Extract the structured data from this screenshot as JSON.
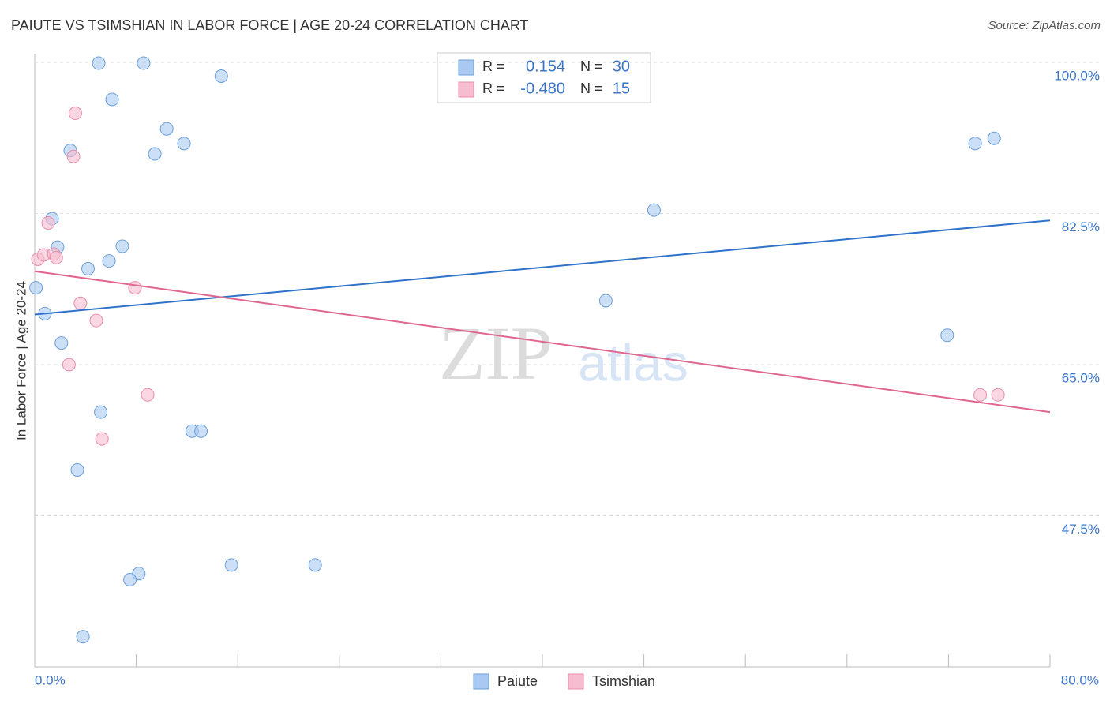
{
  "chart_data": {
    "type": "scatter",
    "title": "PAIUTE VS TSIMSHIAN IN LABOR FORCE | AGE 20-24 CORRELATION CHART",
    "source": "Source: ZipAtlas.com",
    "y_label": "In Labor Force | Age 20-24",
    "watermark": [
      "ZIP",
      "atlas"
    ],
    "xlim": [
      0,
      80
    ],
    "ylim": [
      30,
      101
    ],
    "xticks": [
      {
        "value": 0,
        "label": "0.0%"
      },
      {
        "value": 8,
        "label": null
      },
      {
        "value": 16,
        "label": null
      },
      {
        "value": 24,
        "label": null
      },
      {
        "value": 32,
        "label": null
      },
      {
        "value": 40,
        "label": null
      },
      {
        "value": 48,
        "label": null
      },
      {
        "value": 56,
        "label": null
      },
      {
        "value": 64,
        "label": null
      },
      {
        "value": 72,
        "label": null
      },
      {
        "value": 80,
        "label": "80.0%"
      }
    ],
    "yticks": [
      {
        "value": 100,
        "label": "100.0%"
      },
      {
        "value": 82.5,
        "label": "82.5%"
      },
      {
        "value": 65,
        "label": "65.0%"
      },
      {
        "value": 47.5,
        "label": "47.5%"
      }
    ],
    "grid": true,
    "stat_labels": [
      "R =",
      "N ="
    ],
    "series": [
      {
        "name": "Paiute",
        "color": "#a9c9f2",
        "stroke": "#6d9fdb",
        "line_color": "#2f72c9",
        "r": "0.154",
        "n": "30",
        "x": [
          5.04,
          8.58,
          14.7,
          6.1,
          10.4,
          2.8,
          9.46,
          11.76,
          74.1,
          75.6,
          48.8,
          1.37,
          1.8,
          6.9,
          5.85,
          4.2,
          0.1,
          45.0,
          0.8,
          2.1,
          71.9,
          5.2,
          12.4,
          13.1,
          3.36,
          15.5,
          22.1,
          8.2,
          7.5,
          3.8
        ],
        "values": [
          99.9,
          99.9,
          98.4,
          95.7,
          92.3,
          89.8,
          89.4,
          90.6,
          90.6,
          91.2,
          82.9,
          81.9,
          78.6,
          78.7,
          77.0,
          76.1,
          73.9,
          72.4,
          70.9,
          67.5,
          68.4,
          59.5,
          57.3,
          57.3,
          52.8,
          41.8,
          41.8,
          40.8,
          40.1,
          33.5
        ],
        "trend_x": [
          0,
          80
        ],
        "trend": [
          70.8,
          81.7
        ]
      },
      {
        "name": "Tsimshian",
        "color": "#f7bccf",
        "stroke": "#e88dab",
        "line_color": "#e0668f",
        "r": "-0.480",
        "n": "15",
        "x": [
          3.2,
          3.05,
          1.06,
          0.25,
          0.7,
          1.5,
          1.7,
          7.9,
          3.6,
          4.85,
          2.7,
          8.9,
          5.3,
          74.5,
          75.9
        ],
        "values": [
          94.1,
          89.1,
          81.4,
          77.2,
          77.7,
          77.8,
          77.4,
          73.9,
          72.1,
          70.1,
          65.0,
          61.5,
          56.4,
          61.5,
          61.5
        ],
        "trend_x": [
          0,
          80
        ],
        "trend": [
          75.8,
          59.5
        ]
      }
    ]
  }
}
